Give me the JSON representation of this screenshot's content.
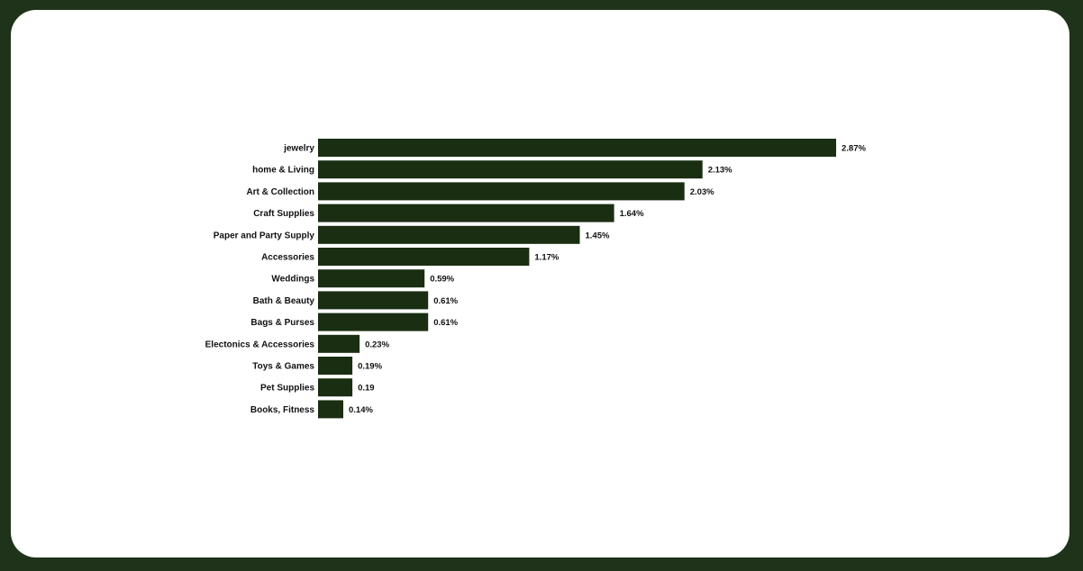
{
  "colors": {
    "frame": "#1e3319",
    "card": "#ffffff",
    "bar": "#1a2e12",
    "text": "#111111"
  },
  "chart_data": {
    "type": "bar",
    "orientation": "horizontal",
    "title": "",
    "xlabel": "",
    "ylabel": "",
    "grid": false,
    "legend": "none",
    "categories": [
      "jewelry",
      "home & Living",
      "Art & Collection",
      "Craft Supplies",
      "Paper and Party Supply",
      "Accessories",
      "Weddings",
      "Bath & Beauty",
      "Bags & Purses",
      "Electonics & Accessories",
      "Toys & Games",
      "Pet Supplies",
      "Books, Fitness"
    ],
    "values": [
      2.87,
      2.13,
      2.03,
      1.64,
      1.45,
      1.17,
      0.59,
      0.61,
      0.61,
      0.23,
      0.19,
      0.19,
      0.14
    ],
    "data_labels": [
      "2.87%",
      "2.13%",
      "2.03%",
      "1.64%",
      "1.45%",
      "1.17%",
      "0.59%",
      "0.61%",
      "0.61%",
      "0.23%",
      "0.19%",
      "0.19",
      "0.14%"
    ],
    "xlim": [
      0,
      2.87
    ]
  }
}
